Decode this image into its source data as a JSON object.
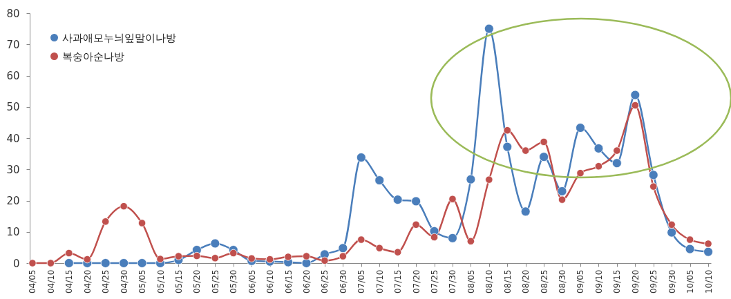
{
  "chart_data": {
    "type": "line",
    "categories": [
      "04/05",
      "04/10",
      "04/15",
      "04/20",
      "04/25",
      "04/30",
      "05/05",
      "05/10",
      "05/15",
      "05/20",
      "05/25",
      "05/30",
      "06/05",
      "06/10",
      "06/15",
      "06/20",
      "06/25",
      "06/30",
      "07/05",
      "07/10",
      "07/15",
      "07/20",
      "07/25",
      "07/30",
      "08/05",
      "08/10",
      "08/15",
      "08/20",
      "08/25",
      "08/30",
      "09/05",
      "09/10",
      "09/15",
      "09/20",
      "09/25",
      "09/30",
      "10/05",
      "10/10"
    ],
    "series": [
      {
        "name": "사과애모누늬잎말이나방",
        "color": "#4a7ebb",
        "values": [
          null,
          null,
          0,
          0,
          0,
          0,
          0,
          0,
          1,
          4.2,
          6.3,
          4.2,
          0.7,
          0.5,
          0.3,
          0,
          2.8,
          4.8,
          33.8,
          26.5,
          20.3,
          19.8,
          10.2,
          8,
          26.8,
          75,
          37.2,
          16.5,
          34,
          23,
          43.3,
          36.7,
          32,
          53.8,
          28.2,
          9.8,
          4.5,
          3.6
        ]
      },
      {
        "name": "복숭아순나방",
        "color": "#c0504d",
        "values": [
          0,
          0,
          3.2,
          1.2,
          13.3,
          18.2,
          12.8,
          1.3,
          2.2,
          2.3,
          1.6,
          3.2,
          1.5,
          1.2,
          2,
          2.2,
          0.8,
          2.2,
          7.5,
          4.8,
          3.5,
          12.3,
          8.3,
          20.5,
          7,
          26.7,
          42.5,
          36,
          38.8,
          20.3,
          28.8,
          31,
          36,
          50.5,
          24.5,
          12.3,
          7.5,
          6.2
        ]
      }
    ],
    "ylim": [
      0,
      80
    ],
    "yticks": [
      0,
      10,
      20,
      30,
      40,
      50,
      60,
      70,
      80
    ],
    "legend": "top left",
    "marker": "circle",
    "grid": false
  }
}
